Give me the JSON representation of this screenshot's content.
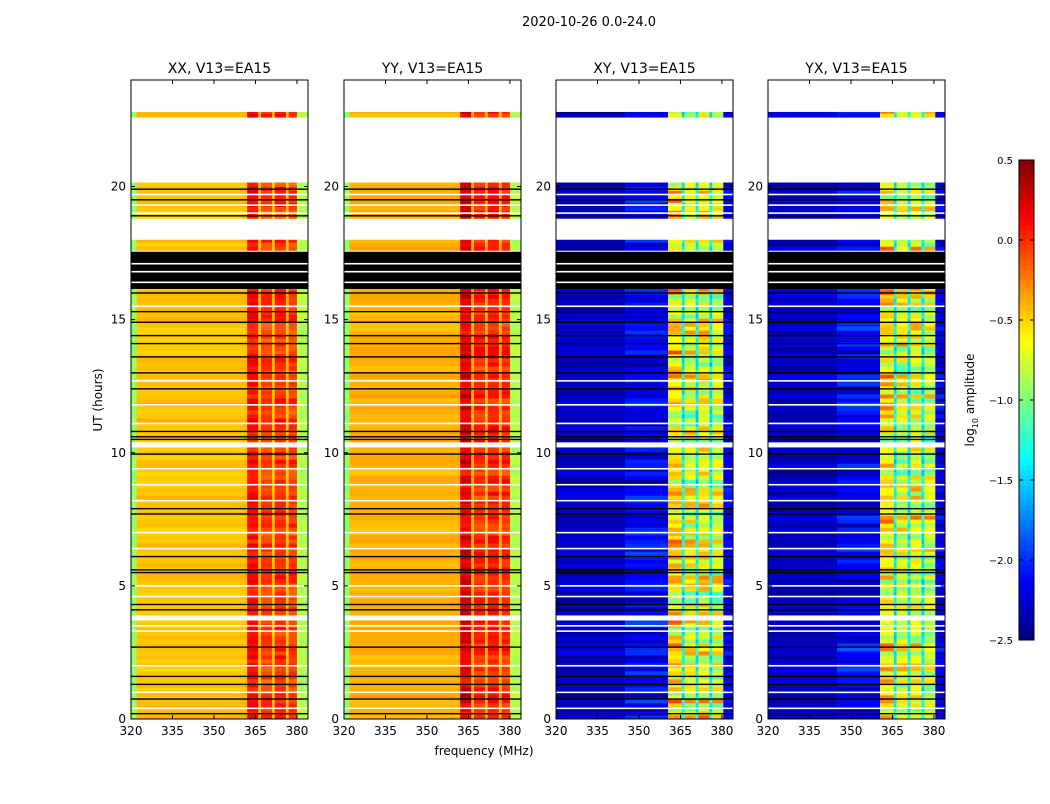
{
  "chart_data": {
    "type": "heatmap",
    "suptitle": "2020-10-26 0.0-24.0",
    "xlabel": "frequency (MHz)",
    "ylabel": "UT (hours)",
    "xlim": [
      320,
      384
    ],
    "ylim": [
      0,
      24
    ],
    "xticks": [
      "320",
      "335",
      "350",
      "365",
      "380"
    ],
    "xtick_values": [
      320,
      335,
      350,
      365,
      380
    ],
    "yticks": [
      "0",
      "5",
      "10",
      "15",
      "20"
    ],
    "ytick_values": [
      0,
      5,
      10,
      15,
      20
    ],
    "colorbar": {
      "label": "log10 amplitude",
      "label_main": "log",
      "label_sub": "10",
      "label_rest": " amplitude",
      "range": [
        -2.5,
        0.5
      ],
      "ticks": [
        "0.5",
        "0.0",
        "−0.5",
        "−1.0",
        "−1.5",
        "−2.0",
        "−2.5"
      ],
      "tick_values": [
        0.5,
        0.0,
        -0.5,
        -1.0,
        -1.5,
        -2.0,
        -2.5
      ],
      "colormap": "jet"
    },
    "valid_time_intervals": [
      [
        0,
        3.7
      ],
      [
        3.9,
        10.2
      ],
      [
        10.4,
        16.15
      ],
      [
        17.6,
        18.0
      ],
      [
        18.8,
        20.15
      ],
      [
        22.6,
        22.8
      ]
    ],
    "flagged_black_band": [
      16.15,
      17.55
    ],
    "black_lines": [
      0.2,
      0.75,
      1.3,
      1.6,
      2.7,
      4.1,
      4.3,
      5.5,
      5.6,
      6.1,
      7.7,
      7.9,
      9.95,
      10.5,
      10.6,
      10.8,
      12.4,
      13.0,
      13.6,
      14.1,
      14.4,
      14.9,
      15.3,
      16.0,
      18.9,
      19.5,
      19.9
    ],
    "white_lines": [
      0.4,
      1.0,
      2.0,
      3.3,
      3.5,
      4.6,
      5.0,
      6.4,
      7.0,
      8.2,
      8.8,
      9.4,
      11.1,
      11.8,
      12.7,
      15.5,
      16.4,
      16.8,
      17.1,
      19.0,
      19.3,
      19.7
    ],
    "panels": [
      {
        "title": "XX, V13=EA15",
        "segments": [
          [
            320,
            322,
            -0.95,
            0.05
          ],
          [
            322,
            362,
            -0.45,
            0.06
          ],
          [
            362,
            366,
            0.1,
            0.15
          ],
          [
            366,
            367,
            -0.45,
            0.05
          ],
          [
            367,
            371,
            -0.05,
            0.15
          ],
          [
            371,
            372,
            -0.45,
            0.05
          ],
          [
            372,
            376,
            0.0,
            0.15
          ],
          [
            376,
            377,
            -0.45,
            0.05
          ],
          [
            377,
            380,
            -0.05,
            0.15
          ],
          [
            380,
            384,
            -0.85,
            0.05
          ]
        ]
      },
      {
        "title": "YY, V13=EA15",
        "segments": [
          [
            320,
            322,
            -0.95,
            0.05
          ],
          [
            322,
            362,
            -0.4,
            0.06
          ],
          [
            362,
            366,
            0.2,
            0.2
          ],
          [
            366,
            367,
            -0.4,
            0.05
          ],
          [
            367,
            371,
            0.0,
            0.15
          ],
          [
            371,
            372,
            -0.4,
            0.05
          ],
          [
            372,
            376,
            0.05,
            0.15
          ],
          [
            376,
            377,
            -0.4,
            0.05
          ],
          [
            377,
            380,
            0.0,
            0.15
          ],
          [
            380,
            384,
            -0.85,
            0.05
          ]
        ]
      },
      {
        "title": "XY, V13=EA15",
        "segments": [
          [
            320,
            345,
            -2.3,
            0.15
          ],
          [
            345,
            360.5,
            -2.15,
            0.25
          ],
          [
            360.5,
            365.5,
            -0.55,
            0.45
          ],
          [
            365.5,
            366.5,
            -1.4,
            0.2
          ],
          [
            366.5,
            370.5,
            -0.7,
            0.45
          ],
          [
            370.5,
            371.5,
            -1.4,
            0.2
          ],
          [
            371.5,
            375.5,
            -0.65,
            0.45
          ],
          [
            375.5,
            376.5,
            -1.4,
            0.2
          ],
          [
            376.5,
            380.5,
            -0.75,
            0.45
          ],
          [
            380.5,
            384,
            -2.2,
            0.2
          ]
        ]
      },
      {
        "title": "YX, V13=EA15",
        "segments": [
          [
            320,
            345,
            -2.3,
            0.15
          ],
          [
            345,
            360.5,
            -2.15,
            0.25
          ],
          [
            360.5,
            365.5,
            -0.55,
            0.45
          ],
          [
            365.5,
            366.5,
            -1.4,
            0.2
          ],
          [
            366.5,
            370.5,
            -0.7,
            0.45
          ],
          [
            370.5,
            371.5,
            -1.4,
            0.2
          ],
          [
            371.5,
            375.5,
            -0.65,
            0.45
          ],
          [
            375.5,
            376.5,
            -1.4,
            0.2
          ],
          [
            376.5,
            380.5,
            -0.75,
            0.45
          ],
          [
            380.5,
            384,
            -2.2,
            0.2
          ]
        ]
      }
    ]
  }
}
